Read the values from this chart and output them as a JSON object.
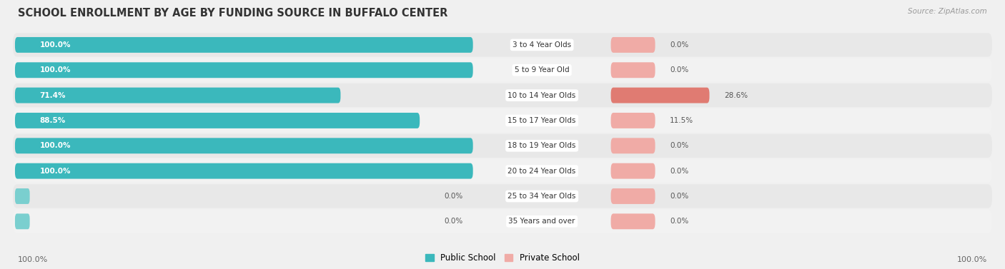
{
  "title": "SCHOOL ENROLLMENT BY AGE BY FUNDING SOURCE IN BUFFALO CENTER",
  "source": "Source: ZipAtlas.com",
  "categories": [
    "3 to 4 Year Olds",
    "5 to 9 Year Old",
    "10 to 14 Year Olds",
    "15 to 17 Year Olds",
    "18 to 19 Year Olds",
    "20 to 24 Year Olds",
    "25 to 34 Year Olds",
    "35 Years and over"
  ],
  "public_values": [
    100.0,
    100.0,
    71.4,
    88.5,
    100.0,
    100.0,
    0.0,
    0.0
  ],
  "private_values": [
    0.0,
    0.0,
    28.6,
    11.5,
    0.0,
    0.0,
    0.0,
    0.0
  ],
  "public_color": "#3bb8bc",
  "public_color_light": "#7acfcf",
  "private_color": "#e07b72",
  "private_color_light": "#f0aba6",
  "legend_public": "Public School",
  "legend_private": "Private School",
  "bottom_left_label": "100.0%",
  "bottom_right_label": "100.0%",
  "title_fontsize": 10.5,
  "bg_color": "#f0f0f0",
  "row_colors": [
    "#e8e8e8",
    "#f2f2f2"
  ],
  "bar_bg": "#ffffff"
}
